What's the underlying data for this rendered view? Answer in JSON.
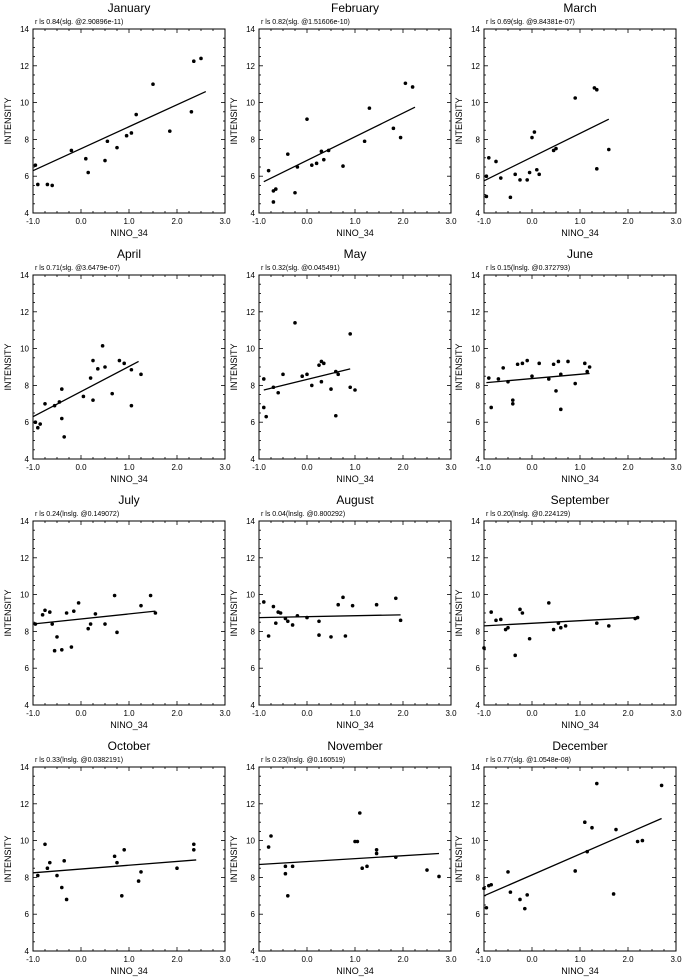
{
  "chart_data": [
    {
      "type": "scatter",
      "title": "January",
      "stat": "r ls  0.84(slg. @2.90896e-11)",
      "xlabel": "NINO_34",
      "ylabel": "INTENSITY",
      "xlim": [
        -1.0,
        3.0
      ],
      "ylim": [
        4,
        14
      ],
      "points": [
        [
          -0.95,
          6.6
        ],
        [
          -0.9,
          5.55
        ],
        [
          -0.7,
          5.55
        ],
        [
          -0.6,
          5.5
        ],
        [
          -0.2,
          7.4
        ],
        [
          0.1,
          6.95
        ],
        [
          0.15,
          6.2
        ],
        [
          0.5,
          6.85
        ],
        [
          0.55,
          7.9
        ],
        [
          0.75,
          7.55
        ],
        [
          0.95,
          8.2
        ],
        [
          1.05,
          8.35
        ],
        [
          1.15,
          9.35
        ],
        [
          1.5,
          11.0
        ],
        [
          1.85,
          8.45
        ],
        [
          2.3,
          9.5
        ],
        [
          2.35,
          12.25
        ],
        [
          2.5,
          12.4
        ]
      ],
      "fit": [
        [
          -1.0,
          6.3
        ],
        [
          2.6,
          10.6
        ]
      ]
    },
    {
      "type": "scatter",
      "title": "February",
      "stat": "r ls  0.82(slg. @1.51606e-10)",
      "xlabel": "NINO_34",
      "ylabel": "INTENSITY",
      "xlim": [
        -1.0,
        3.0
      ],
      "ylim": [
        4,
        14
      ],
      "points": [
        [
          -0.8,
          6.3
        ],
        [
          -0.7,
          5.2
        ],
        [
          -0.65,
          5.3
        ],
        [
          -0.7,
          4.6
        ],
        [
          -0.4,
          7.2
        ],
        [
          -0.25,
          5.1
        ],
        [
          -0.2,
          6.5
        ],
        [
          0.0,
          9.1
        ],
        [
          0.1,
          6.6
        ],
        [
          0.2,
          6.7
        ],
        [
          0.3,
          7.35
        ],
        [
          0.35,
          6.9
        ],
        [
          0.45,
          7.4
        ],
        [
          0.75,
          6.55
        ],
        [
          1.2,
          7.9
        ],
        [
          1.3,
          9.7
        ],
        [
          1.8,
          8.6
        ],
        [
          1.95,
          8.1
        ],
        [
          2.05,
          11.05
        ],
        [
          2.2,
          10.85
        ]
      ],
      "fit": [
        [
          -0.9,
          5.7
        ],
        [
          2.25,
          9.75
        ]
      ]
    },
    {
      "type": "scatter",
      "title": "March",
      "stat": "r ls  0.69(slg. @9.84381e-07)",
      "xlabel": "NINO_34",
      "ylabel": "INTENSITY",
      "xlim": [
        -1.0,
        3.0
      ],
      "ylim": [
        4,
        14
      ],
      "points": [
        [
          -0.95,
          6.0
        ],
        [
          -0.9,
          7.0
        ],
        [
          -0.95,
          4.9
        ],
        [
          -0.75,
          6.8
        ],
        [
          -0.65,
          5.9
        ],
        [
          -0.45,
          4.85
        ],
        [
          -0.35,
          6.1
        ],
        [
          -0.25,
          5.8
        ],
        [
          -0.1,
          5.8
        ],
        [
          -0.05,
          6.2
        ],
        [
          0.0,
          8.1
        ],
        [
          0.05,
          8.4
        ],
        [
          0.1,
          6.35
        ],
        [
          0.15,
          6.1
        ],
        [
          0.45,
          7.4
        ],
        [
          0.5,
          7.5
        ],
        [
          0.9,
          10.25
        ],
        [
          1.3,
          10.8
        ],
        [
          1.35,
          10.7
        ],
        [
          1.35,
          6.4
        ],
        [
          1.6,
          7.45
        ]
      ],
      "fit": [
        [
          -1.0,
          5.75
        ],
        [
          1.6,
          9.1
        ]
      ]
    },
    {
      "type": "scatter",
      "title": "April",
      "stat": "r ls  0.71(slg. @3.6479e-07)",
      "xlabel": "NINO_34",
      "ylabel": "INTENSITY",
      "xlim": [
        -1.0,
        3.0
      ],
      "ylim": [
        4,
        14
      ],
      "points": [
        [
          -0.95,
          6.0
        ],
        [
          -0.9,
          5.7
        ],
        [
          -0.85,
          5.9
        ],
        [
          -0.75,
          7.0
        ],
        [
          -0.55,
          6.9
        ],
        [
          -0.45,
          7.1
        ],
        [
          -0.4,
          7.8
        ],
        [
          -0.4,
          6.2
        ],
        [
          -0.35,
          5.2
        ],
        [
          0.05,
          7.4
        ],
        [
          0.2,
          8.4
        ],
        [
          0.25,
          9.35
        ],
        [
          0.25,
          7.2
        ],
        [
          0.35,
          8.9
        ],
        [
          0.45,
          10.15
        ],
        [
          0.5,
          9.0
        ],
        [
          0.65,
          7.55
        ],
        [
          0.8,
          9.35
        ],
        [
          0.9,
          9.2
        ],
        [
          1.05,
          8.85
        ],
        [
          1.05,
          6.9
        ],
        [
          1.25,
          8.6
        ]
      ],
      "fit": [
        [
          -1.0,
          6.3
        ],
        [
          1.2,
          9.3
        ]
      ]
    },
    {
      "type": "scatter",
      "title": "May",
      "stat": "r ls  0.32(slg. @0.045491)",
      "xlabel": "NINO_34",
      "ylabel": "INTENSITY",
      "xlim": [
        -1.0,
        3.0
      ],
      "ylim": [
        4,
        14
      ],
      "points": [
        [
          -0.9,
          8.35
        ],
        [
          -0.9,
          6.8
        ],
        [
          -0.85,
          6.3
        ],
        [
          -0.7,
          7.9
        ],
        [
          -0.6,
          7.6
        ],
        [
          -0.5,
          8.6
        ],
        [
          -0.25,
          11.4
        ],
        [
          -0.1,
          8.5
        ],
        [
          0.0,
          8.6
        ],
        [
          0.1,
          8.0
        ],
        [
          0.25,
          9.1
        ],
        [
          0.3,
          9.3
        ],
        [
          0.3,
          8.2
        ],
        [
          0.35,
          9.2
        ],
        [
          0.5,
          7.8
        ],
        [
          0.6,
          6.35
        ],
        [
          0.6,
          8.75
        ],
        [
          0.65,
          8.6
        ],
        [
          0.9,
          10.8
        ],
        [
          0.9,
          7.9
        ],
        [
          1.0,
          7.75
        ]
      ],
      "fit": [
        [
          -0.9,
          7.75
        ],
        [
          0.9,
          8.9
        ]
      ]
    },
    {
      "type": "scatter",
      "title": "June",
      "stat": "r ls  0.15(lnslg. @0.372793)",
      "xlabel": "NINO_34",
      "ylabel": "INTENSITY",
      "xlim": [
        -1.0,
        3.0
      ],
      "ylim": [
        4,
        14
      ],
      "points": [
        [
          -0.9,
          8.4
        ],
        [
          -0.85,
          6.8
        ],
        [
          -0.7,
          8.35
        ],
        [
          -0.6,
          8.95
        ],
        [
          -0.5,
          8.2
        ],
        [
          -0.4,
          7.2
        ],
        [
          -0.4,
          7.0
        ],
        [
          -0.3,
          9.15
        ],
        [
          -0.2,
          9.2
        ],
        [
          -0.1,
          9.35
        ],
        [
          0.0,
          8.5
        ],
        [
          0.15,
          9.2
        ],
        [
          0.35,
          8.35
        ],
        [
          0.45,
          9.15
        ],
        [
          0.5,
          7.7
        ],
        [
          0.55,
          9.3
        ],
        [
          0.6,
          8.6
        ],
        [
          0.6,
          6.7
        ],
        [
          0.75,
          9.3
        ],
        [
          0.9,
          8.1
        ],
        [
          1.1,
          9.2
        ],
        [
          1.15,
          8.75
        ],
        [
          1.2,
          9.0
        ]
      ],
      "fit": [
        [
          -0.95,
          8.15
        ],
        [
          1.2,
          8.65
        ]
      ]
    },
    {
      "type": "scatter",
      "title": "July",
      "stat": "r ls  0.24(lnslg. @0.149072)",
      "xlabel": "NINO_34",
      "ylabel": "INTENSITY",
      "xlim": [
        -1.0,
        3.0
      ],
      "ylim": [
        4,
        14
      ],
      "points": [
        [
          -0.95,
          8.4
        ],
        [
          -0.8,
          8.9
        ],
        [
          -0.75,
          9.15
        ],
        [
          -0.65,
          9.05
        ],
        [
          -0.6,
          8.4
        ],
        [
          -0.55,
          6.95
        ],
        [
          -0.5,
          7.7
        ],
        [
          -0.4,
          7.0
        ],
        [
          -0.3,
          9.0
        ],
        [
          -0.2,
          7.15
        ],
        [
          -0.15,
          9.1
        ],
        [
          -0.05,
          9.55
        ],
        [
          0.15,
          8.15
        ],
        [
          0.2,
          8.4
        ],
        [
          0.3,
          8.95
        ],
        [
          0.5,
          8.4
        ],
        [
          0.7,
          9.95
        ],
        [
          0.75,
          7.95
        ],
        [
          1.25,
          9.4
        ],
        [
          1.45,
          9.95
        ],
        [
          1.55,
          9.0
        ]
      ],
      "fit": [
        [
          -1.0,
          8.4
        ],
        [
          1.55,
          9.1
        ]
      ]
    },
    {
      "type": "scatter",
      "title": "August",
      "stat": "r ls  0.04(lnslg. @0.800292)",
      "xlabel": "NINO_34",
      "ylabel": "INTENSITY",
      "xlim": [
        -1.0,
        3.0
      ],
      "ylim": [
        4,
        14
      ],
      "points": [
        [
          -0.9,
          9.6
        ],
        [
          -0.8,
          7.75
        ],
        [
          -0.7,
          9.35
        ],
        [
          -0.65,
          8.45
        ],
        [
          -0.6,
          9.05
        ],
        [
          -0.55,
          9.0
        ],
        [
          -0.45,
          8.7
        ],
        [
          -0.4,
          8.55
        ],
        [
          -0.3,
          8.35
        ],
        [
          -0.2,
          8.85
        ],
        [
          0.0,
          8.75
        ],
        [
          0.25,
          8.55
        ],
        [
          0.25,
          7.8
        ],
        [
          0.5,
          7.7
        ],
        [
          0.65,
          9.45
        ],
        [
          0.75,
          9.85
        ],
        [
          0.8,
          7.75
        ],
        [
          0.95,
          9.4
        ],
        [
          1.45,
          9.45
        ],
        [
          1.85,
          9.8
        ],
        [
          1.95,
          8.6
        ]
      ],
      "fit": [
        [
          -1.0,
          8.75
        ],
        [
          1.95,
          8.9
        ]
      ]
    },
    {
      "type": "scatter",
      "title": "September",
      "stat": "r ls  0.20(lnslg. @0.224129)",
      "xlabel": "NINO_34",
      "ylabel": "INTENSITY",
      "xlim": [
        -1.0,
        3.0
      ],
      "ylim": [
        4,
        14
      ],
      "points": [
        [
          -1.0,
          7.1
        ],
        [
          -0.85,
          9.05
        ],
        [
          -0.75,
          8.6
        ],
        [
          -0.65,
          8.65
        ],
        [
          -0.55,
          8.1
        ],
        [
          -0.5,
          8.2
        ],
        [
          -0.35,
          6.7
        ],
        [
          -0.25,
          9.2
        ],
        [
          -0.2,
          9.0
        ],
        [
          -0.05,
          7.6
        ],
        [
          0.35,
          9.55
        ],
        [
          0.45,
          8.1
        ],
        [
          0.55,
          8.45
        ],
        [
          0.6,
          8.2
        ],
        [
          0.7,
          8.3
        ],
        [
          1.35,
          8.45
        ],
        [
          1.6,
          8.3
        ],
        [
          2.15,
          8.7
        ],
        [
          2.2,
          8.75
        ]
      ],
      "fit": [
        [
          -1.0,
          8.3
        ],
        [
          2.2,
          8.75
        ]
      ]
    },
    {
      "type": "scatter",
      "title": "October",
      "stat": "r ls  0.33(lnslg. @0.0382191)",
      "xlabel": "NINO_34",
      "ylabel": "INTENSITY",
      "xlim": [
        -1.0,
        3.0
      ],
      "ylim": [
        4,
        14
      ],
      "points": [
        [
          -0.9,
          8.1
        ],
        [
          -0.75,
          9.8
        ],
        [
          -0.7,
          8.5
        ],
        [
          -0.65,
          8.8
        ],
        [
          -0.5,
          8.1
        ],
        [
          -0.4,
          7.45
        ],
        [
          -0.35,
          8.9
        ],
        [
          -0.3,
          6.8
        ],
        [
          0.7,
          9.15
        ],
        [
          0.75,
          8.8
        ],
        [
          0.85,
          7.0
        ],
        [
          0.9,
          9.5
        ],
        [
          1.2,
          7.8
        ],
        [
          1.25,
          8.3
        ],
        [
          2.0,
          8.5
        ],
        [
          2.35,
          9.5
        ],
        [
          2.35,
          9.8
        ]
      ],
      "fit": [
        [
          -1.0,
          8.25
        ],
        [
          2.4,
          8.95
        ]
      ]
    },
    {
      "type": "scatter",
      "title": "November",
      "stat": "r ls  0.23(lnslg. @0.160519)",
      "xlabel": "NINO_34",
      "ylabel": "INTENSITY",
      "xlim": [
        -1.0,
        3.0
      ],
      "ylim": [
        4,
        14
      ],
      "points": [
        [
          -0.8,
          9.65
        ],
        [
          -0.75,
          10.25
        ],
        [
          -0.45,
          8.6
        ],
        [
          -0.45,
          8.2
        ],
        [
          -0.4,
          7.0
        ],
        [
          -0.3,
          8.6
        ],
        [
          1.0,
          9.95
        ],
        [
          1.05,
          9.95
        ],
        [
          1.1,
          11.5
        ],
        [
          1.15,
          8.5
        ],
        [
          1.25,
          8.6
        ],
        [
          1.45,
          9.3
        ],
        [
          1.45,
          9.5
        ],
        [
          1.85,
          9.1
        ],
        [
          2.5,
          8.4
        ],
        [
          2.75,
          8.05
        ]
      ],
      "fit": [
        [
          -1.0,
          8.7
        ],
        [
          2.75,
          9.3
        ]
      ]
    },
    {
      "type": "scatter",
      "title": "December",
      "stat": "r ls  0.77(slg. @1.0548e-08)",
      "xlabel": "NINO_34",
      "ylabel": "INTENSITY",
      "xlim": [
        -1.0,
        3.0
      ],
      "ylim": [
        4,
        14
      ],
      "points": [
        [
          -1.0,
          7.4
        ],
        [
          -0.95,
          6.35
        ],
        [
          -0.9,
          7.55
        ],
        [
          -0.85,
          7.6
        ],
        [
          -0.5,
          8.3
        ],
        [
          -0.45,
          7.2
        ],
        [
          -0.25,
          6.8
        ],
        [
          -0.15,
          6.3
        ],
        [
          -0.1,
          7.05
        ],
        [
          0.9,
          8.35
        ],
        [
          1.1,
          11.0
        ],
        [
          1.15,
          9.4
        ],
        [
          1.25,
          10.7
        ],
        [
          1.35,
          13.1
        ],
        [
          1.7,
          7.1
        ],
        [
          1.75,
          10.6
        ],
        [
          2.2,
          9.95
        ],
        [
          2.3,
          10.0
        ],
        [
          2.7,
          13.0
        ]
      ],
      "fit": [
        [
          -1.0,
          7.0
        ],
        [
          2.7,
          11.2
        ]
      ]
    }
  ]
}
